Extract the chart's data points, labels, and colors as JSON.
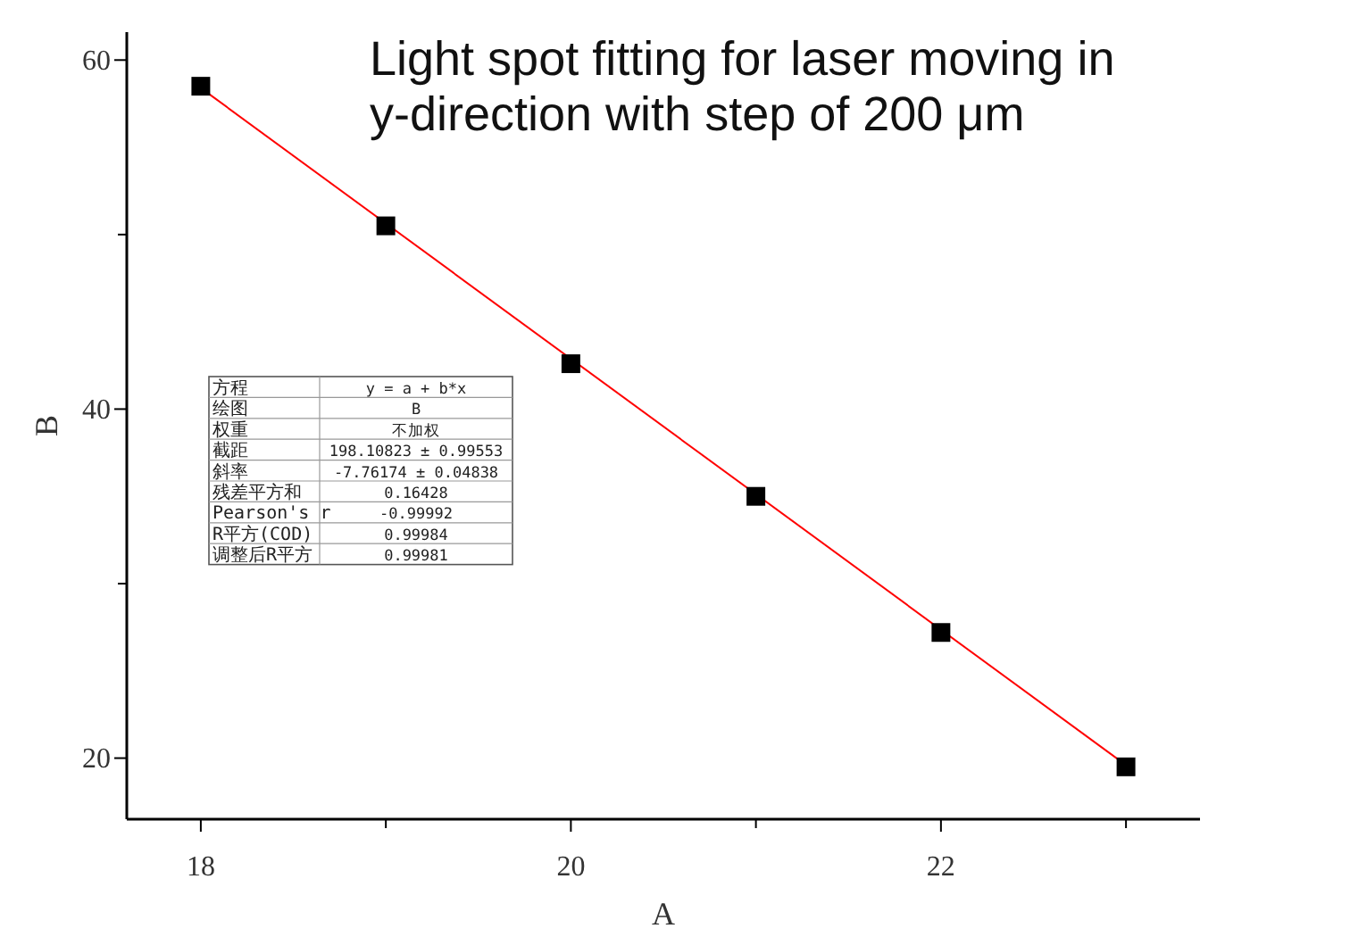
{
  "chart_data": {
    "type": "scatter",
    "title": "Light spot fitting for laser moving in y-direction with step of 200 μm",
    "xlabel": "A",
    "ylabel": "B",
    "x": [
      18,
      19,
      20,
      21,
      22,
      23
    ],
    "series": [
      {
        "color": "#000000",
        "marker": "square",
        "values": [
          58.5,
          50.5,
          42.6,
          35.0,
          27.2,
          19.5
        ]
      },
      {
        "type": "line",
        "color": "#ff0000",
        "x": [
          18,
          23
        ],
        "values": [
          58.4,
          19.6
        ]
      }
    ],
    "xlim": [
      17.6,
      23.4
    ],
    "ylim": [
      16.5,
      61.6
    ],
    "xticks": [
      18,
      {
        "value": 19,
        "label": null
      },
      20,
      {
        "value": 21,
        "label": null
      },
      22,
      {
        "value": 23,
        "label": null
      }
    ],
    "yticks": [
      20,
      {
        "value": 30,
        "label": null
      },
      40,
      {
        "value": 50,
        "label": null
      },
      60
    ],
    "grid": false,
    "annotations": [
      "方程",
      "y = a + b*x",
      "绘图",
      "B",
      "权重",
      "不加权",
      "截距",
      "198.10823 ± 0.99553",
      "斜率",
      "-7.76174 ± 0.04838",
      "残差平方和",
      "0.16428",
      "Pearson's r",
      "-0.99992",
      "R平方(COD)",
      "0.99984",
      "调整后R平方",
      "0.99981"
    ]
  }
}
